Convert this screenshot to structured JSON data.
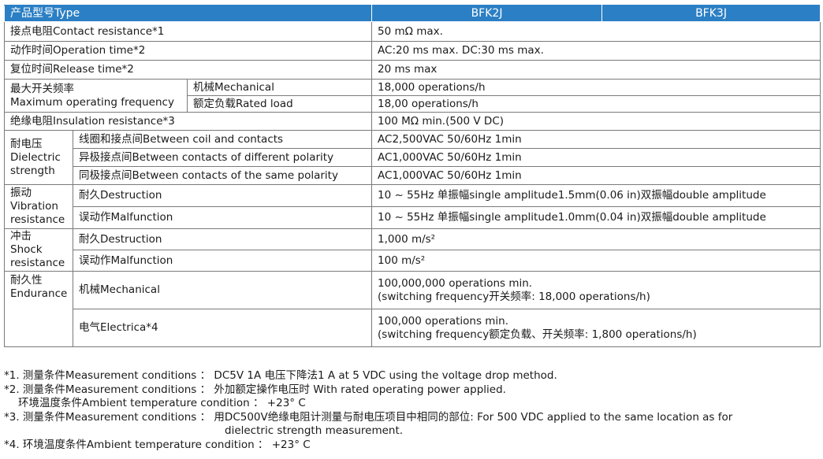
{
  "header": {
    "type_label": "产品型号Type",
    "models": [
      "BFK2J",
      "BFK3J"
    ]
  },
  "rows": {
    "contact_resistance": {
      "label": "接点电阻Contact resistance*1",
      "value": "50 mΩ  max."
    },
    "operation_time": {
      "label": "动作时间Operation time*2",
      "value": "AC:20 ms max.    DC:30 ms max."
    },
    "release_time": {
      "label": "复位时间Release time*2",
      "value": "20 ms max"
    },
    "max_frequency": {
      "label_line1": "最大开关频率",
      "label_line2": "Maximum operating frequency",
      "mechanical": {
        "label": "机械Mechanical",
        "value": "18,000 operations/h"
      },
      "rated_load": {
        "label": "额定负载Rated load",
        "value": "18,00 operations/h"
      }
    },
    "insulation_resistance": {
      "label": "绝缘电阻Insulation resistance*3",
      "value": "100 MΩ  min.(500 V DC)"
    },
    "dielectric_strength": {
      "label_lines": [
        "耐电压",
        "Dielectric",
        "strength"
      ],
      "coil_contacts": {
        "label": "线圈和接点间Between coil and contacts",
        "value": "AC2,500VAC 50/60Hz 1min"
      },
      "diff_polarity": {
        "label": "异极接点间Between contacts of different polarity",
        "value": "AC1,000VAC 50/60Hz 1min"
      },
      "same_polarity": {
        "label": "同极接点间Between contacts of the same polarity",
        "value": "AC1,000VAC 50/60Hz 1min"
      }
    },
    "vibration": {
      "label_lines": [
        "振动",
        "Vibration",
        "resistance"
      ],
      "destruction": {
        "label": "耐久Destruction",
        "value": "10 ~ 55Hz 单振幅single amplitude1.5mm(0.06 in)双振幅double amplitude"
      },
      "malfunction": {
        "label": "误动作Malfunction",
        "value": "10 ~ 55Hz 单振幅single amplitude1.0mm(0.04 in)双振幅double amplitude"
      }
    },
    "shock": {
      "label_lines": [
        "冲击",
        "Shock",
        "resistance"
      ],
      "destruction": {
        "label": "耐久Destruction",
        "value": "1,000 m/s²"
      },
      "malfunction": {
        "label": "误动作Malfunction",
        "value": "100 m/s²"
      }
    },
    "endurance": {
      "label_lines": [
        "耐久性",
        "Endurance"
      ],
      "mechanical": {
        "label": "机械Mechanical",
        "value_line1": "100,000,000 operations min.",
        "value_line2": "(switching frequency开关频率: 18,000 operations/h)"
      },
      "electrical": {
        "label": "电气Electrica*4",
        "value_line1": "100,000 operations min.",
        "value_line2": "(switching frequency额定负载、开关频率: 1,800 operations/h)"
      }
    }
  },
  "notes": [
    "*1. 测量条件Measurement conditions ： DC5V 1A 电压下降法1 A at 5 VDC using the voltage drop method.",
    "*2. 测量条件Measurement conditions ： 外加额定操作电压时 With rated operating power applied.",
    "环境温度条件Ambient temperature condition ： +23°  C",
    "*3. 测量条件Measurement conditions ： 用DC500V绝缘电阻计测量与耐电压项目中相同的部位: For 500 VDC applied to the same location as for",
    "dielectric strength measurement.",
    "*4. 环境温度条件Ambient temperature condition ： +23°  C"
  ],
  "colors": {
    "header_bg": "#2b7fc4",
    "header_text": "#ffffff",
    "border": "#7a7a7a"
  }
}
